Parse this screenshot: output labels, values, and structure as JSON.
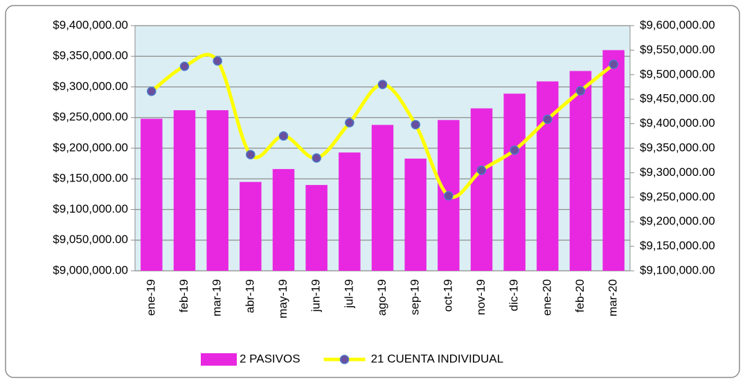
{
  "chart_data": {
    "type": "combo",
    "categories": [
      "ene-19",
      "feb-19",
      "mar-19",
      "abr-19",
      "may-19",
      "jun-19",
      "jul-19",
      "ago-19",
      "sep-19",
      "oct-19",
      "nov-19",
      "dic-19",
      "ene-20",
      "feb-20",
      "mar-20"
    ],
    "series": [
      {
        "name": "2 PASIVOS",
        "type": "bar",
        "axis": "y",
        "color": "#e828e0",
        "values": [
          9248000,
          9262000,
          9262000,
          9145000,
          9166000,
          9140000,
          9193000,
          9238000,
          9183000,
          9246000,
          9265000,
          9289000,
          9309000,
          9326000,
          9360000
        ]
      },
      {
        "name": "21 CUENTA INDIVIDUAL",
        "type": "line",
        "axis": "y2",
        "color": "#ffff00",
        "marker_color": "#6a4f9e",
        "smooth": true,
        "values": [
          9466000,
          9517000,
          9528000,
          9337000,
          9375000,
          9330000,
          9402000,
          9480000,
          9398000,
          9253000,
          9305000,
          9346000,
          9409000,
          9467000,
          9521000
        ]
      }
    ],
    "ylim": [
      9000000,
      9400000
    ],
    "yticks": [
      {
        "value": 9000000,
        "label": "$9,000,000.00"
      },
      {
        "value": 9050000,
        "label": "$9,050,000.00"
      },
      {
        "value": 9100000,
        "label": "$9,100,000.00"
      },
      {
        "value": 9150000,
        "label": "$9,150,000.00"
      },
      {
        "value": 9200000,
        "label": "$9,200,000.00"
      },
      {
        "value": 9250000,
        "label": "$9,250,000.00"
      },
      {
        "value": 9300000,
        "label": "$9,300,000.00"
      },
      {
        "value": 9350000,
        "label": "$9,350,000.00"
      },
      {
        "value": 9400000,
        "label": "$9,400,000.00"
      }
    ],
    "y2lim": [
      9100000,
      9600000
    ],
    "y2ticks": [
      {
        "value": 9100000,
        "label": "$9,100,000.00"
      },
      {
        "value": 9150000,
        "label": "$9,150,000.00"
      },
      {
        "value": 9200000,
        "label": "$9,200,000.00"
      },
      {
        "value": 9250000,
        "label": "$9,250,000.00"
      },
      {
        "value": 9300000,
        "label": "$9,300,000.00"
      },
      {
        "value": 9350000,
        "label": "$9,350,000.00"
      },
      {
        "value": 9400000,
        "label": "$9,400,000.00"
      },
      {
        "value": 9450000,
        "label": "$9,450,000.00"
      },
      {
        "value": 9500000,
        "label": "$9,500,000.00"
      },
      {
        "value": 9550000,
        "label": "$9,550,000.00"
      },
      {
        "value": 9600000,
        "label": "$9,600,000.00"
      }
    ],
    "grid": true,
    "plot_background": "#dbeef3",
    "legend": "bottom"
  }
}
